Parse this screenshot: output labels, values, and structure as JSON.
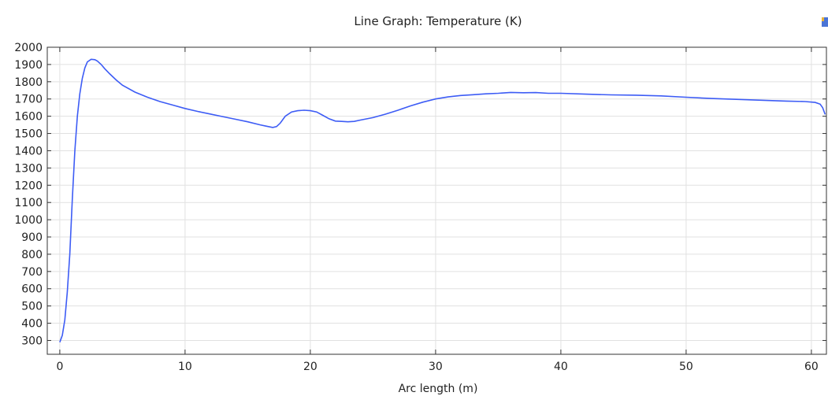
{
  "chart_data": {
    "type": "line",
    "title": "Line Graph: Temperature (K)",
    "xlabel": "Arc length (m)",
    "ylabel": "",
    "xlim": [
      -1,
      61.2
    ],
    "ylim": [
      220,
      2000
    ],
    "xticks": [
      0,
      10,
      20,
      30,
      40,
      50,
      60
    ],
    "yticks": [
      300,
      400,
      500,
      600,
      700,
      800,
      900,
      1000,
      1100,
      1200,
      1300,
      1400,
      1500,
      1600,
      1700,
      1800,
      1900,
      2000
    ],
    "grid": true,
    "legend": "none",
    "series": [
      {
        "color": "#3d5cf5",
        "x": [
          0.0,
          0.2,
          0.4,
          0.6,
          0.8,
          1.0,
          1.2,
          1.4,
          1.6,
          1.8,
          2.0,
          2.2,
          2.5,
          2.8,
          3.0,
          3.3,
          3.6,
          4.0,
          4.5,
          5.0,
          6.0,
          7.0,
          8.0,
          9.0,
          10.0,
          11.0,
          12.0,
          13.0,
          14.0,
          15.0,
          16.0,
          16.5,
          17.0,
          17.3,
          17.6,
          18.0,
          18.5,
          19.0,
          19.5,
          20.0,
          20.5,
          21.0,
          21.5,
          22.0,
          22.5,
          23.0,
          23.5,
          24.0,
          25.0,
          26.0,
          27.0,
          28.0,
          29.0,
          30.0,
          31.0,
          32.0,
          33.0,
          34.0,
          35.0,
          36.0,
          37.0,
          38.0,
          39.0,
          40.0,
          42.0,
          44.0,
          46.0,
          48.0,
          50.0,
          52.0,
          54.0,
          56.0,
          58.0,
          59.5,
          60.3,
          60.7,
          60.9,
          61.1
        ],
        "values": [
          290,
          330,
          420,
          580,
          800,
          1120,
          1400,
          1600,
          1730,
          1820,
          1880,
          1915,
          1930,
          1928,
          1920,
          1900,
          1875,
          1845,
          1810,
          1780,
          1740,
          1710,
          1685,
          1665,
          1645,
          1628,
          1613,
          1598,
          1583,
          1568,
          1550,
          1542,
          1535,
          1540,
          1560,
          1600,
          1625,
          1632,
          1635,
          1632,
          1625,
          1605,
          1585,
          1572,
          1570,
          1568,
          1570,
          1578,
          1592,
          1612,
          1635,
          1660,
          1682,
          1700,
          1712,
          1720,
          1725,
          1730,
          1733,
          1738,
          1736,
          1737,
          1733,
          1733,
          1728,
          1724,
          1722,
          1718,
          1710,
          1703,
          1698,
          1693,
          1688,
          1685,
          1680,
          1670,
          1650,
          1610
        ]
      }
    ]
  }
}
